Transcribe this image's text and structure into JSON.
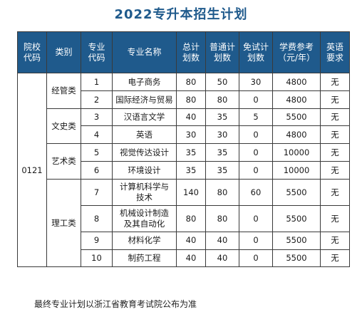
{
  "title": "2022专升本招生计划",
  "headers": {
    "code": [
      "院校",
      "代码"
    ],
    "category": "类别",
    "major_code": [
      "专业",
      "代码"
    ],
    "major_name": "专业名称",
    "total": [
      "总计",
      "划数"
    ],
    "regular": [
      "普通计",
      "划数"
    ],
    "exempt": [
      "免试计",
      "划数"
    ],
    "tuition": [
      "学费参考",
      "（元/年）"
    ],
    "english": [
      "英语",
      "要求"
    ]
  },
  "school_code": "0121",
  "categories": [
    "经管类",
    "文史类",
    "艺术类",
    "理工类"
  ],
  "rows": [
    {
      "code": "1",
      "name": "电子商务",
      "total": "80",
      "regular": "50",
      "exempt": "30",
      "tuition": "4800",
      "english": "无"
    },
    {
      "code": "2",
      "name": "国际经济与贸易",
      "total": "80",
      "regular": "80",
      "exempt": "0",
      "tuition": "4800",
      "english": "无"
    },
    {
      "code": "3",
      "name": "汉语言文学",
      "total": "40",
      "regular": "35",
      "exempt": "5",
      "tuition": "5500",
      "english": "无"
    },
    {
      "code": "4",
      "name": "英语",
      "total": "30",
      "regular": "30",
      "exempt": "0",
      "tuition": "4800",
      "english": "无"
    },
    {
      "code": "5",
      "name": "视觉传达设计",
      "total": "35",
      "regular": "35",
      "exempt": "0",
      "tuition": "10000",
      "english": "无"
    },
    {
      "code": "6",
      "name": "环境设计",
      "total": "35",
      "regular": "35",
      "exempt": "0",
      "tuition": "10000",
      "english": "无"
    },
    {
      "code": "7",
      "name": [
        "计算机科学与",
        "技术"
      ],
      "total": "140",
      "regular": "80",
      "exempt": "60",
      "tuition": "5500",
      "english": "无"
    },
    {
      "code": "8",
      "name": [
        "机械设计制造",
        "及其自动化"
      ],
      "total": "80",
      "regular": "80",
      "exempt": "0",
      "tuition": "5500",
      "english": "无"
    },
    {
      "code": "9",
      "name": "材料化学",
      "total": "40",
      "regular": "40",
      "exempt": "0",
      "tuition": "5500",
      "english": "无"
    },
    {
      "code": "10",
      "name": "制药工程",
      "total": "40",
      "regular": "40",
      "exempt": "0",
      "tuition": "5500",
      "english": "无"
    }
  ],
  "note": "最终专业计划以浙江省教育考试院公布为准"
}
